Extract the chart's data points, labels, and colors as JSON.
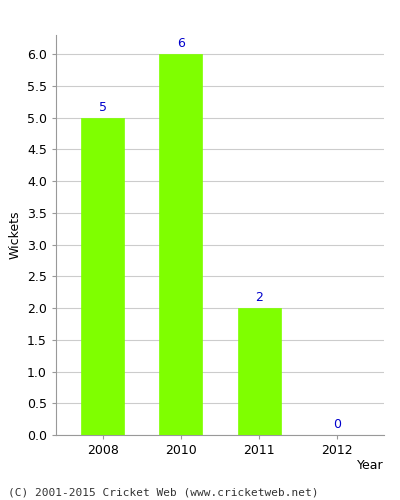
{
  "years": [
    "2008",
    "2010",
    "2011",
    "2012"
  ],
  "values": [
    5,
    6,
    2,
    0
  ],
  "bar_color": "#7FFF00",
  "bar_edge_color": "#7FFF00",
  "label_color": "#0000CC",
  "xlabel": "Year",
  "ylabel": "Wickets",
  "ylim": [
    0,
    6.3
  ],
  "yticks": [
    0.0,
    0.5,
    1.0,
    1.5,
    2.0,
    2.5,
    3.0,
    3.5,
    4.0,
    4.5,
    5.0,
    5.5,
    6.0
  ],
  "grid_color": "#cccccc",
  "background_color": "#ffffff",
  "axes_bg_color": "#ffffff",
  "footer_text": "(C) 2001-2015 Cricket Web (www.cricketweb.net)",
  "footer_fontsize": 8,
  "axis_label_fontsize": 9,
  "tick_fontsize": 9,
  "value_label_fontsize": 9,
  "bar_width": 0.55
}
